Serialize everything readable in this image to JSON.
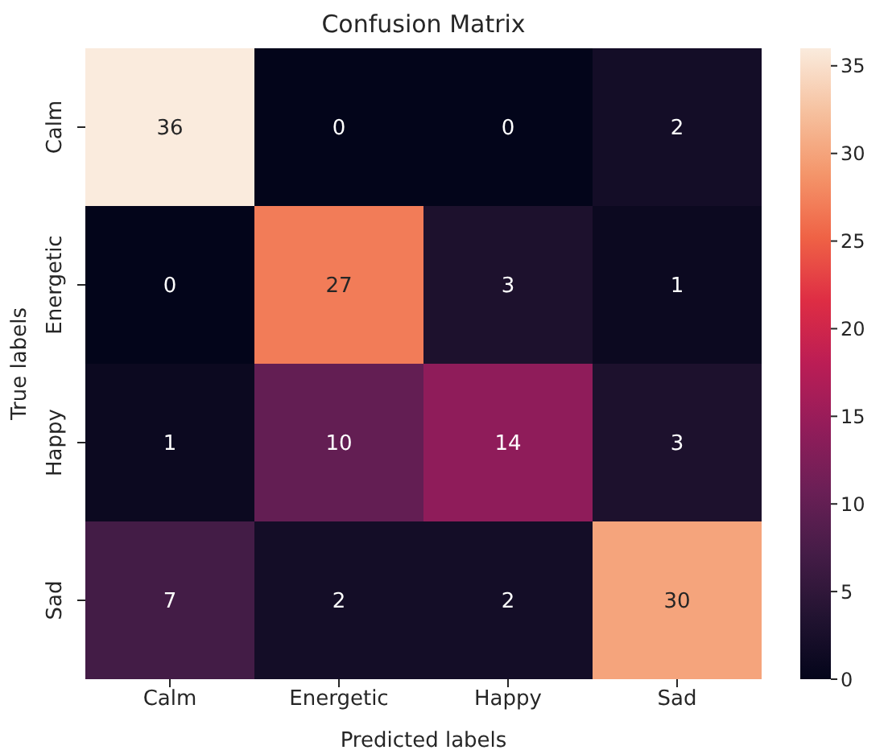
{
  "chart_data": {
    "type": "heatmap",
    "title": "Confusion Matrix",
    "xlabel": "Predicted labels",
    "ylabel": "True labels",
    "categories": [
      "Calm",
      "Energetic",
      "Happy",
      "Sad"
    ],
    "y_categories": [
      "Calm",
      "Energetic",
      "Happy",
      "Sad"
    ],
    "cells": [
      [
        36,
        0,
        0,
        2
      ],
      [
        0,
        27,
        3,
        1
      ],
      [
        1,
        10,
        14,
        3
      ],
      [
        7,
        2,
        2,
        30
      ]
    ],
    "data_labels": true,
    "clim": [
      0,
      36
    ],
    "cticks": [
      0,
      5,
      10,
      15,
      20,
      25,
      30,
      35
    ]
  }
}
